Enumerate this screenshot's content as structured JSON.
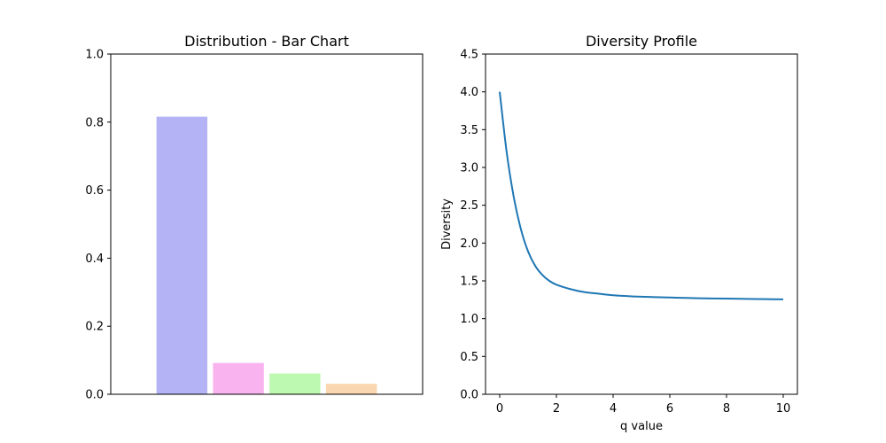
{
  "chart_data": [
    {
      "type": "bar",
      "title": "Distribution - Bar Chart",
      "xlabel": "",
      "ylabel": "",
      "ylim": [
        0,
        1.0
      ],
      "yticks": [
        "0.0",
        "0.2",
        "0.4",
        "0.6",
        "0.8",
        "1.0"
      ],
      "grid": false,
      "values": [
        0.816,
        0.092,
        0.061,
        0.031
      ],
      "colors": [
        "#b3b3f5",
        "#f9b3ef",
        "#bdf9b0",
        "#fad7b0"
      ]
    },
    {
      "type": "line",
      "title": "Diversity Profile",
      "xlabel": "q value",
      "ylabel": "Diversity",
      "xlim": [
        -0.5,
        10.5
      ],
      "ylim": [
        0,
        4.5
      ],
      "xticks": [
        "0",
        "2",
        "4",
        "6",
        "8",
        "10"
      ],
      "yticks": [
        "0.0",
        "0.5",
        "1.0",
        "1.5",
        "2.0",
        "2.5",
        "3.0",
        "3.5",
        "4.0",
        "4.5"
      ],
      "grid": false,
      "color": "#1f77b4",
      "x": [
        0,
        0.25,
        0.5,
        0.75,
        1,
        1.25,
        1.5,
        1.75,
        2,
        2.5,
        3,
        3.5,
        4,
        5,
        6,
        7,
        8,
        9,
        10
      ],
      "y": [
        4.0,
        3.19,
        2.6,
        2.18,
        1.89,
        1.7,
        1.58,
        1.5,
        1.45,
        1.39,
        1.35,
        1.33,
        1.31,
        1.29,
        1.28,
        1.27,
        1.265,
        1.26,
        1.255
      ]
    }
  ]
}
